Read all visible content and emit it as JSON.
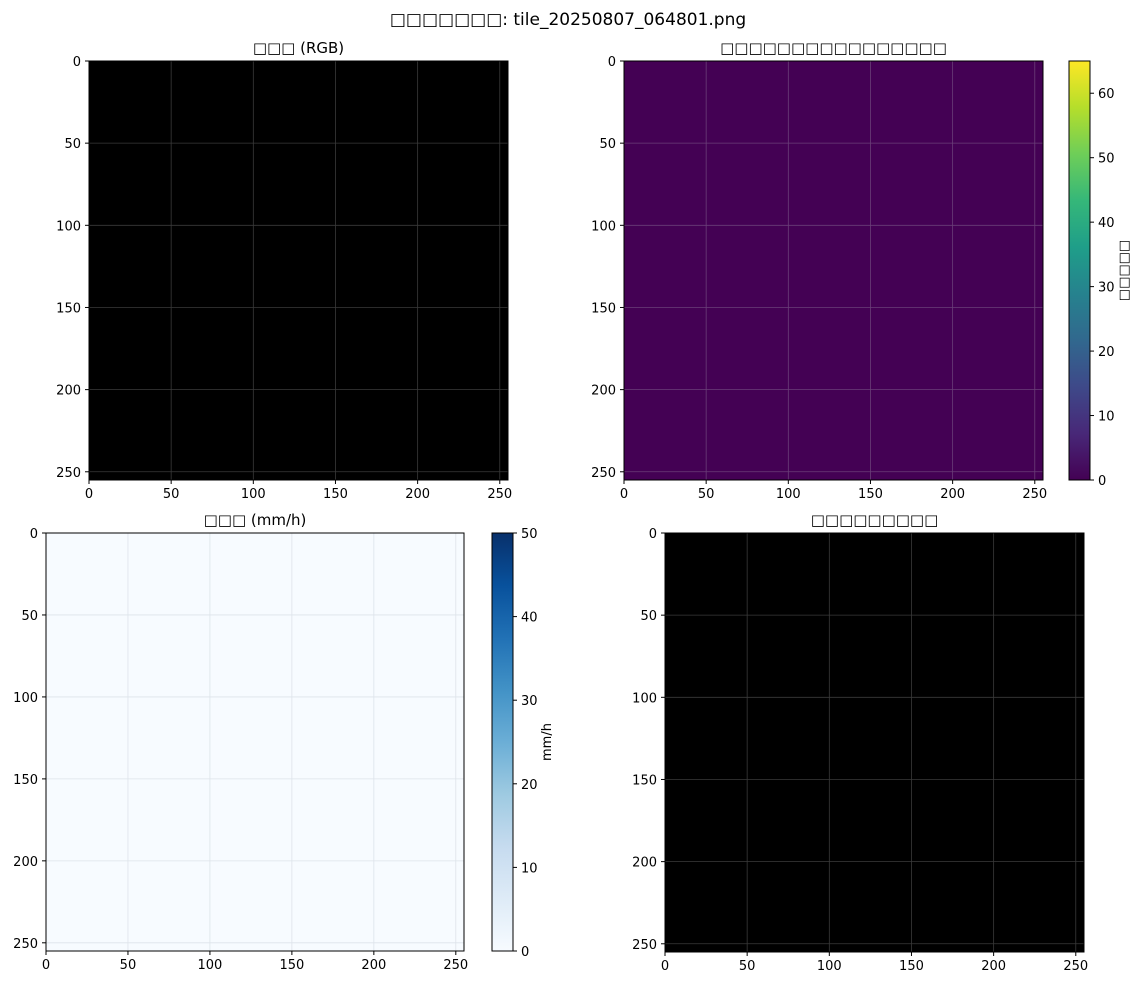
{
  "figure": {
    "suptitle": "□□□□□□□: tile_20250807_064801.png"
  },
  "chart_data": [
    {
      "type": "heatmap",
      "title": "□□□ (RGB)",
      "xlabel": "",
      "ylabel": "",
      "xlim": [
        0,
        255
      ],
      "ylim": [
        255,
        0
      ],
      "xticks": [
        0,
        50,
        100,
        150,
        200,
        250
      ],
      "yticks": [
        0,
        50,
        100,
        150,
        200,
        250
      ],
      "grid": true,
      "fill_color": "#000000",
      "grid_color": "#3a3a3a",
      "colorbar": null
    },
    {
      "type": "heatmap",
      "title": "□□□□□□□□□□□□□□□□",
      "xlabel": "",
      "ylabel": "",
      "xlim": [
        0,
        255
      ],
      "ylim": [
        255,
        0
      ],
      "xticks": [
        0,
        50,
        100,
        150,
        200,
        250
      ],
      "yticks": [
        0,
        50,
        100,
        150,
        200,
        250
      ],
      "grid": true,
      "fill_color": "#440154",
      "grid_color": "#6a3f78",
      "colorbar": {
        "cmap": "viridis",
        "colors": [
          "#440154",
          "#482878",
          "#3e4989",
          "#31688e",
          "#26828e",
          "#1f9e89",
          "#35b779",
          "#6ece58",
          "#b5de2b",
          "#fde725"
        ],
        "vmin": 0,
        "vmax": 65,
        "ticks": [
          0,
          10,
          20,
          30,
          40,
          50,
          60
        ],
        "label": "□□□□□"
      }
    },
    {
      "type": "heatmap",
      "title": "□□□ (mm/h)",
      "xlabel": "",
      "ylabel": "",
      "xlim": [
        0,
        255
      ],
      "ylim": [
        255,
        0
      ],
      "xticks": [
        0,
        50,
        100,
        150,
        200,
        250
      ],
      "yticks": [
        0,
        50,
        100,
        150,
        200,
        250
      ],
      "grid": true,
      "fill_color": "#f7fbff",
      "grid_color": "#dde3ea",
      "colorbar": {
        "cmap": "Blues",
        "colors": [
          "#f7fbff",
          "#deebf7",
          "#c6dbef",
          "#9ecae1",
          "#6baed6",
          "#4292c6",
          "#2171b5",
          "#08519c",
          "#08306b"
        ],
        "vmin": 0,
        "vmax": 50,
        "ticks": [
          0,
          10,
          20,
          30,
          40,
          50
        ],
        "label": "mm/h"
      }
    },
    {
      "type": "heatmap",
      "title": "□□□□□□□□□",
      "xlabel": "",
      "ylabel": "",
      "xlim": [
        0,
        255
      ],
      "ylim": [
        255,
        0
      ],
      "xticks": [
        0,
        50,
        100,
        150,
        200,
        250
      ],
      "yticks": [
        0,
        50,
        100,
        150,
        200,
        250
      ],
      "grid": true,
      "fill_color": "#000000",
      "grid_color": "#3a3a3a",
      "colorbar": null
    }
  ]
}
